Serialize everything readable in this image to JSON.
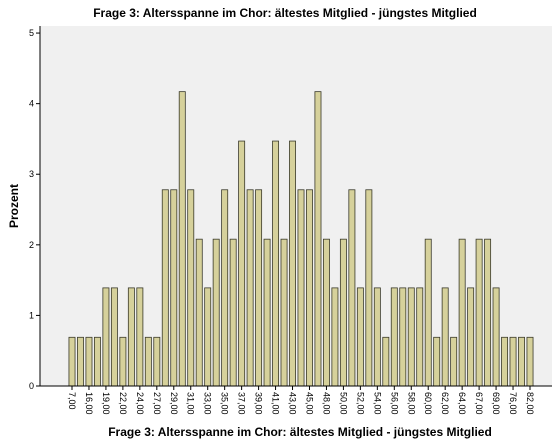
{
  "chart_data": {
    "type": "bar",
    "title": "Frage 3: Altersspanne im Chor: ältestes Mitglied - jüngstes Mitglied",
    "x_label": "Frage 3: Altersspanne im Chor: ältestes Mitglied - jüngstes Mitglied",
    "y_label": "Prozent",
    "categories": [
      "7,00",
      null,
      "16,00",
      null,
      "19,00",
      null,
      "22,00",
      null,
      "24,00",
      null,
      "27,00",
      null,
      "29,00",
      null,
      "31,00",
      null,
      "33,00",
      null,
      "35,00",
      null,
      "37,00",
      null,
      "39,00",
      null,
      "41,00",
      null,
      "43,00",
      null,
      "45,00",
      null,
      "48,00",
      null,
      "50,00",
      null,
      "52,00",
      null,
      "54,00",
      null,
      "56,00",
      null,
      "58,00",
      null,
      "60,00",
      null,
      "62,00",
      null,
      "64,00",
      null,
      "67,00",
      null,
      "69,00",
      null,
      "76,00",
      null,
      "82,00"
    ],
    "values": [
      0.69,
      0.69,
      0.69,
      0.69,
      1.39,
      1.39,
      0.69,
      1.39,
      1.39,
      0.69,
      0.69,
      2.78,
      2.78,
      4.17,
      2.78,
      2.08,
      1.39,
      2.08,
      2.78,
      2.08,
      3.47,
      2.78,
      2.78,
      2.08,
      3.47,
      2.08,
      3.47,
      2.78,
      2.78,
      4.17,
      2.08,
      1.39,
      2.08,
      2.78,
      1.39,
      2.78,
      1.39,
      0.69,
      1.39,
      1.39,
      1.39,
      1.39,
      2.08,
      0.69,
      1.39,
      0.69,
      2.08,
      1.39,
      2.08,
      2.08,
      1.39,
      0.69,
      0.69,
      0.69,
      0.69
    ],
    "color": "#d6d19b",
    "ylim": [
      0,
      5.1
    ],
    "yticks": [
      0,
      1,
      2,
      3,
      4,
      5
    ],
    "grid": false
  }
}
